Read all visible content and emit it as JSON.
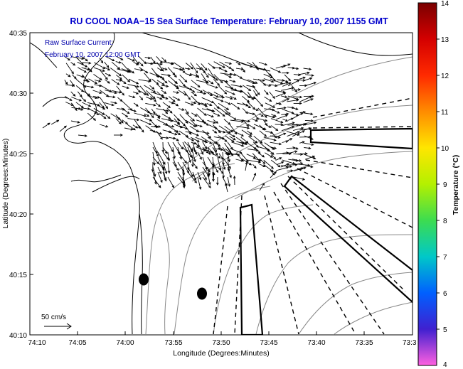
{
  "title": "RU COOL  NOAA−15  Sea Surface Temperature:  February 10, 2007 1155 GMT",
  "annotation": {
    "line1": "Raw Surface Current:",
    "line2": "February 10, 2007 12:00 GMT"
  },
  "axes": {
    "xlabel": "Longitude (Degrees:Minutes)",
    "ylabel": "Latitude (Degrees:Minutes)",
    "x_ticks": [
      "74:10",
      "74:05",
      "74:00",
      "73:55",
      "73:50",
      "73:45",
      "73:40",
      "73:35",
      "73:3"
    ],
    "y_ticks": [
      "40:35",
      "40:30",
      "40:25",
      "40:20",
      "40:15",
      "40:10"
    ]
  },
  "scale": {
    "label": "50 cm/s"
  },
  "colorbar": {
    "label": "Temperature (°C)",
    "ticks": [
      "14",
      "13",
      "12",
      "11",
      "10",
      "9",
      "8",
      "7",
      "6",
      "5",
      "4"
    ]
  },
  "colors": {
    "title": "#0000cc",
    "annotation": "#0000aa",
    "ink": "#000000",
    "contour": "#888888"
  }
}
